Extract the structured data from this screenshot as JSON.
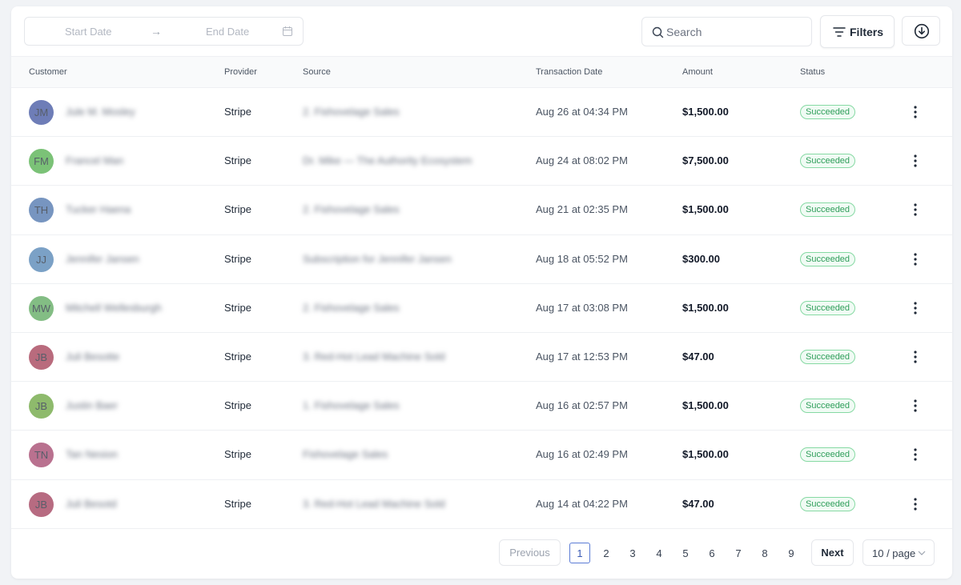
{
  "toolbar": {
    "start_date_placeholder": "Start Date",
    "arrow": "→",
    "end_date_placeholder": "End Date",
    "search_placeholder": "Search",
    "filters_label": "Filters"
  },
  "columns": [
    "Customer",
    "Provider",
    "Source",
    "Transaction Date",
    "Amount",
    "Status"
  ],
  "rows": [
    {
      "initials": "JM",
      "avatar_color": "#3e52a0",
      "customer": "Jule M. Mosley",
      "provider": "Stripe",
      "source": "2. Fishovelage Sales",
      "date": "Aug 26 at 04:34 PM",
      "amount": "$1,500.00",
      "status": "Succeeded"
    },
    {
      "initials": "FM",
      "avatar_color": "#4fae4a",
      "customer": "Francel Man",
      "provider": "Stripe",
      "source": "Dr. Mike — The Authority Ecosystem",
      "date": "Aug 24 at 08:02 PM",
      "amount": "$7,500.00",
      "status": "Succeeded"
    },
    {
      "initials": "TH",
      "avatar_color": "#4a72ac",
      "customer": "Tucker Haena",
      "provider": "Stripe",
      "source": "2. Fishovelage Sales",
      "date": "Aug 21 at 02:35 PM",
      "amount": "$1,500.00",
      "status": "Succeeded"
    },
    {
      "initials": "JJ",
      "avatar_color": "#4f82b4",
      "customer": "Jennifer Jansen",
      "provider": "Stripe",
      "source": "Subscription for Jennifer Jansen",
      "date": "Aug 18 at 05:52 PM",
      "amount": "$300.00",
      "status": "Succeeded"
    },
    {
      "initials": "MW",
      "avatar_color": "#5aa85c",
      "customer": "Mitchell Wellesburgh",
      "provider": "Stripe",
      "source": "2. Fishovelage Sales",
      "date": "Aug 17 at 03:08 PM",
      "amount": "$1,500.00",
      "status": "Succeeded"
    },
    {
      "initials": "JB",
      "avatar_color": "#a23a52",
      "customer": "Juli Besotte",
      "provider": "Stripe",
      "source": "3. Red-Hot Lead Machine Sold",
      "date": "Aug 17 at 12:53 PM",
      "amount": "$47.00",
      "status": "Succeeded"
    },
    {
      "initials": "JB",
      "avatar_color": "#69a43c",
      "customer": "Justin Baer",
      "provider": "Stripe",
      "source": "1. Fishovelage Sales",
      "date": "Aug 16 at 02:57 PM",
      "amount": "$1,500.00",
      "status": "Succeeded"
    },
    {
      "initials": "TN",
      "avatar_color": "#a2426a",
      "customer": "Tan Nesion",
      "provider": "Stripe",
      "source": "Fishovelage Sales",
      "date": "Aug 16 at 02:49 PM",
      "amount": "$1,500.00",
      "status": "Succeeded"
    },
    {
      "initials": "JB",
      "avatar_color": "#a03a58",
      "customer": "Juli Besotd",
      "provider": "Stripe",
      "source": "3. Red-Hot Lead Machine Sold",
      "date": "Aug 14 at 04:22 PM",
      "amount": "$47.00",
      "status": "Succeeded"
    }
  ],
  "pagination": {
    "previous": "Previous",
    "pages": [
      "1",
      "2",
      "3",
      "4",
      "5",
      "6",
      "7",
      "8",
      "9"
    ],
    "current": "1",
    "next": "Next",
    "per_page": "10 / page"
  },
  "colors": {
    "status_border": "#86d9a3",
    "status_text": "#2f9e5a",
    "active_page": "#5b7bd5"
  }
}
